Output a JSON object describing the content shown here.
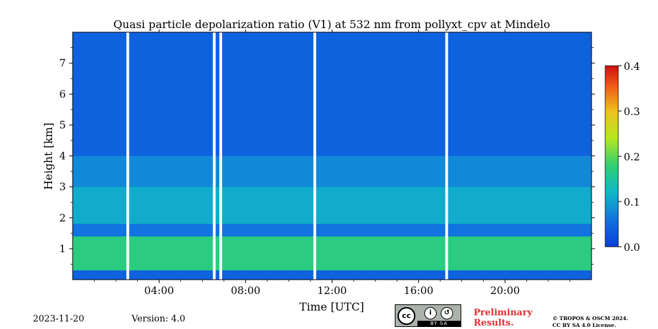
{
  "chart_data": {
    "type": "heatmap",
    "title": "Quasi particle depolarization ratio (V1) at 532 nm from pollyxt_cpv at Mindelo",
    "xlabel": "Time [UTC]",
    "ylabel": "Height [km]",
    "x_tick_labels": [
      "04:00",
      "08:00",
      "12:00",
      "16:00",
      "20:00"
    ],
    "x_ticks_hours": [
      4,
      8,
      12,
      16,
      20
    ],
    "xlim_hours": [
      0,
      24
    ],
    "y_ticks": [
      1,
      2,
      3,
      4,
      5,
      6,
      7
    ],
    "ylim": [
      0,
      8
    ],
    "colorbar": {
      "ticks": [
        "0.0",
        "0.1",
        "0.2",
        "0.3",
        "0.4"
      ],
      "tick_values": [
        0.0,
        0.1,
        0.2,
        0.3,
        0.4
      ],
      "range": [
        0.0,
        0.4
      ],
      "colormap": "jet"
    },
    "data_gaps_hours": [
      2.55,
      6.55,
      6.85,
      11.2,
      17.3
    ],
    "layers": [
      {
        "height_km": [
          0.3,
          1.4
        ],
        "value": 0.17
      },
      {
        "height_km": [
          1.4,
          1.8
        ],
        "value": 0.06
      },
      {
        "height_km": [
          1.8,
          3.0
        ],
        "value": 0.11
      },
      {
        "height_km": [
          3.0,
          4.0
        ],
        "value": 0.08
      },
      {
        "height_km": [
          4.0,
          8.0
        ],
        "value": 0.04
      }
    ]
  },
  "footer": {
    "date": "2023-11-20",
    "version": "Version: 4.0",
    "preliminary_line1": "Preliminary",
    "preliminary_line2": "Results.",
    "copyright_line1": "© TROPOS & OSCM 2024.",
    "copyright_line2": "CC BY SA 4.0 License.",
    "license_badge_cc": "cc",
    "license_badge_strip": "BY SA"
  },
  "colors": {
    "low": "#0a3fd8",
    "mid": "#12b6c8",
    "high": "#d01010",
    "preliminary": "#e03030"
  }
}
